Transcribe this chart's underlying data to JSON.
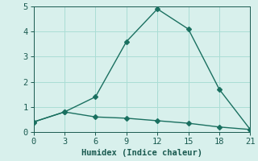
{
  "line1_x": [
    0,
    3,
    6,
    9,
    12,
    15,
    18,
    21
  ],
  "line1_y": [
    0.4,
    0.8,
    1.4,
    3.6,
    4.9,
    4.1,
    1.7,
    0.1
  ],
  "line2_x": [
    0,
    3,
    6,
    9,
    12,
    15,
    18,
    21
  ],
  "line2_y": [
    0.4,
    0.8,
    0.6,
    0.55,
    0.45,
    0.35,
    0.2,
    0.1
  ],
  "line_color": "#1a7060",
  "bg_color": "#d8f0ec",
  "grid_color": "#aaddd5",
  "xlabel": "Humidex (Indice chaleur)",
  "xlim": [
    0,
    21
  ],
  "ylim": [
    0,
    5
  ],
  "xticks": [
    0,
    3,
    6,
    9,
    12,
    15,
    18,
    21
  ],
  "yticks": [
    0,
    1,
    2,
    3,
    4,
    5
  ],
  "font_color": "#1a5a50",
  "markersize": 3,
  "linewidth": 1.0
}
